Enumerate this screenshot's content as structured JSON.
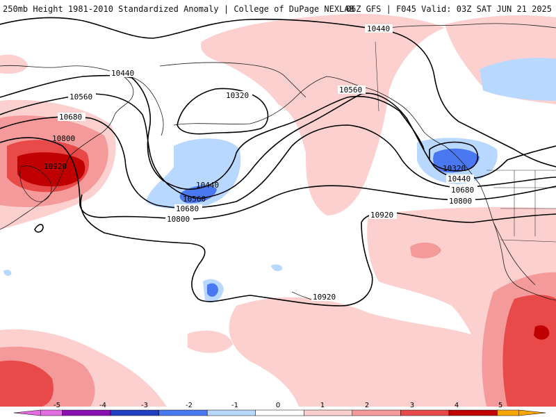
{
  "header": {
    "left": "250mb Height 1981-2010 Standardized Anomaly | College of DuPage NEXLAB",
    "right": "06Z GFS | F045 Valid: 03Z SAT JUN 21 2025"
  },
  "colors": {
    "neg5": "#e36ee3",
    "neg4": "#8a0fb0",
    "neg3": "#1f3fc0",
    "neg2": "#4a78f0",
    "neg1": "#b9d8ff",
    "zero": "#ffffff",
    "pos1": "#fdd0d0",
    "pos2": "#f59a9a",
    "pos3": "#e84a4a",
    "pos4": "#c00000",
    "pos5": "#f7a600",
    "contour": "#000000",
    "coast": "#1a1a1a"
  },
  "contours": [
    {
      "label": "10320"
    },
    {
      "label": "10440"
    },
    {
      "label": "10560"
    },
    {
      "label": "10680"
    },
    {
      "label": "10800"
    },
    {
      "label": "10920"
    }
  ],
  "colorbar": {
    "ticks": [
      "-5",
      "-4",
      "-3",
      "-2",
      "-1",
      "0",
      "1",
      "2",
      "3",
      "4",
      "5"
    ]
  }
}
